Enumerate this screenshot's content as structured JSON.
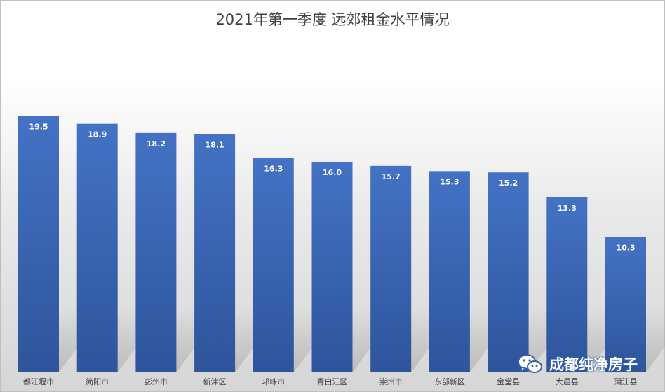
{
  "chart_data": {
    "type": "bar",
    "title": "2021年第一季度 远郊租金水平情况",
    "categories": [
      "都江堰市",
      "简阳市",
      "彭州市",
      "新津区",
      "邛崃市",
      "青白江区",
      "崇州市",
      "东部新区",
      "金堂县",
      "大邑县",
      "蒲江县"
    ],
    "values": [
      19.5,
      18.9,
      18.2,
      18.1,
      16.3,
      16.0,
      15.7,
      15.3,
      15.2,
      13.3,
      10.3
    ],
    "value_labels": [
      "19.5",
      "18.9",
      "18.2",
      "18.1",
      "16.3",
      "16.0",
      "15.7",
      "15.3",
      "15.2",
      "13.3",
      "10.3"
    ],
    "xlabel": "",
    "ylabel": "",
    "ylim": [
      0,
      22.5
    ],
    "grid": false,
    "legend": "none",
    "data_labels": "inside-top",
    "bar_color_top": "#4472c4",
    "bar_color_bottom": "#2e559b"
  },
  "watermark": {
    "text": "成都纯净房子",
    "icon": "wechat-icon"
  }
}
